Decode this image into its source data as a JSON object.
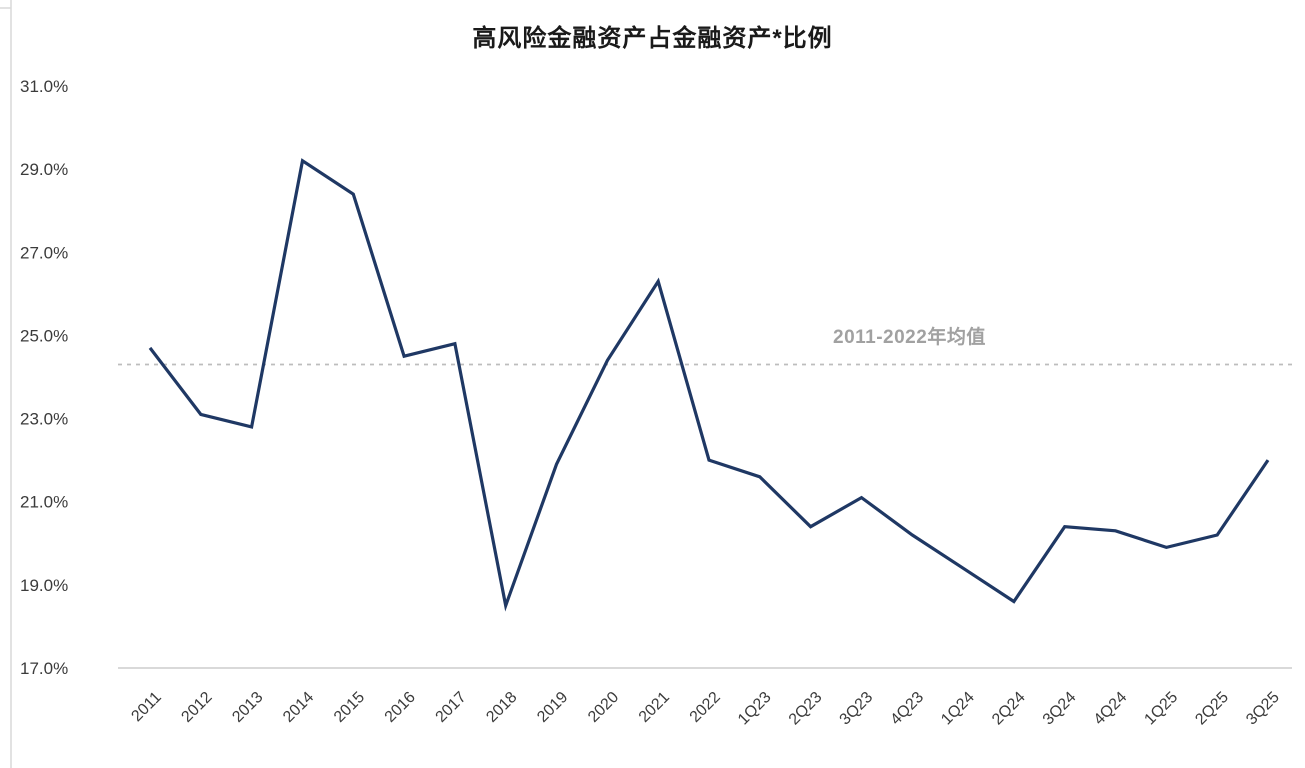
{
  "chart_data": {
    "type": "line",
    "title": "高风险金融资产占金融资产*比例",
    "categories": [
      "2011",
      "2012",
      "2013",
      "2014",
      "2015",
      "2016",
      "2017",
      "2018",
      "2019",
      "2020",
      "2021",
      "2022",
      "1Q23",
      "2Q23",
      "3Q23",
      "4Q23",
      "1Q24",
      "2Q24",
      "3Q24",
      "4Q24",
      "1Q25",
      "2Q25",
      "3Q25"
    ],
    "series": [
      {
        "name": "高风险金融资产占金融资产比例",
        "values": [
          24.7,
          23.1,
          22.8,
          29.2,
          28.4,
          24.5,
          24.8,
          18.5,
          21.9,
          24.4,
          26.3,
          22.0,
          21.6,
          20.4,
          21.1,
          20.2,
          19.4,
          18.6,
          20.4,
          20.3,
          19.9,
          20.2,
          22.0
        ]
      }
    ],
    "average_line": {
      "label": "2011-2022年均值",
      "value": 24.3,
      "style": "dashed"
    },
    "ylim": [
      17.0,
      31.0
    ],
    "ytick_step": 2.0,
    "yticks": [
      "31.0%",
      "29.0%",
      "27.0%",
      "25.0%",
      "23.0%",
      "21.0%",
      "19.0%",
      "17.0%"
    ],
    "xlabel": "",
    "ylabel": "",
    "grid": "off",
    "legend": "none",
    "colors": {
      "line": "#1f3864",
      "average_line": "#bdbdbd",
      "average_label": "#a1a1a1",
      "axis_line": "#d9d9d9",
      "tick_text": "#3b3b3b",
      "title_text": "#1a1a1a",
      "page_border": "#d9d9d9"
    }
  }
}
